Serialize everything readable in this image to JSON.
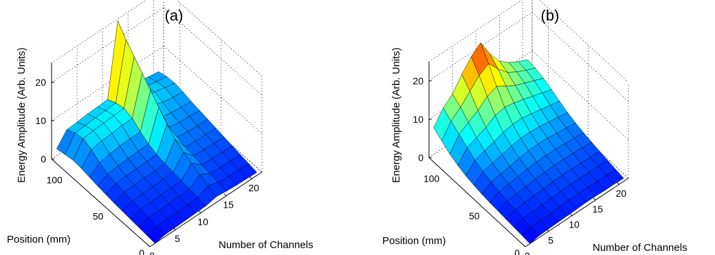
{
  "chart_data": [
    {
      "type": "surface3d",
      "title": "(a)",
      "xlabel": "Number of Channels",
      "ylabel": "Position (mm)",
      "zlabel": "Energy Amplitude (Arb. Units)",
      "xticks": [
        "0",
        "5",
        "10",
        "15",
        "20"
      ],
      "yticks": [
        "0",
        "50",
        "100"
      ],
      "zticks": [
        "0",
        "10",
        "20"
      ],
      "xlim": [
        0,
        22
      ],
      "ylim": [
        0,
        120
      ],
      "zlim": [
        0,
        25
      ],
      "grid": true,
      "colormap": "jet",
      "channels": [
        1,
        3,
        5,
        7,
        9,
        11,
        13,
        15,
        17,
        19,
        21
      ],
      "positions": [
        0,
        10,
        20,
        30,
        40,
        50,
        60,
        70,
        80,
        90,
        100,
        110,
        120
      ],
      "z": [
        [
          0.0,
          0.2,
          0.4,
          0.6,
          0.8,
          1.0,
          1.3,
          1.6,
          2.0,
          2.4,
          2.6,
          2.2,
          1.8
        ],
        [
          0.5,
          0.8,
          1.1,
          1.4,
          1.7,
          2.0,
          2.4,
          3.0,
          4.0,
          5.5,
          6.5,
          6.0,
          5.0
        ],
        [
          0.6,
          0.9,
          1.2,
          1.5,
          1.8,
          2.1,
          2.6,
          3.3,
          4.5,
          6.0,
          6.8,
          6.2,
          5.2
        ],
        [
          0.7,
          1.0,
          1.3,
          1.6,
          1.9,
          2.2,
          2.7,
          3.5,
          4.8,
          6.2,
          7.0,
          6.5,
          5.5
        ],
        [
          0.8,
          1.1,
          1.4,
          1.7,
          2.0,
          2.3,
          2.8,
          3.6,
          5.0,
          6.5,
          7.2,
          6.6,
          5.6
        ],
        [
          0.9,
          1.2,
          1.5,
          1.8,
          2.1,
          2.4,
          2.9,
          3.7,
          5.0,
          6.6,
          7.3,
          6.8,
          5.8
        ],
        [
          1.5,
          2.5,
          3.5,
          4.5,
          5.5,
          7.0,
          9.0,
          11.5,
          14.0,
          16.5,
          19.0,
          21.5,
          24.5
        ],
        [
          1.2,
          1.6,
          2.0,
          2.4,
          2.8,
          3.2,
          3.8,
          4.5,
          5.2,
          6.5,
          7.2,
          6.8,
          6.0
        ],
        [
          1.0,
          1.4,
          1.8,
          2.2,
          2.6,
          3.0,
          3.5,
          4.0,
          4.6,
          5.5,
          6.2,
          5.8,
          5.0
        ],
        [
          0.9,
          1.3,
          1.7,
          2.1,
          2.5,
          2.9,
          3.3,
          3.8,
          4.3,
          5.0,
          5.6,
          5.2,
          4.6
        ],
        [
          0.8,
          1.2,
          1.6,
          2.0,
          2.4,
          2.8,
          3.2,
          3.6,
          4.0,
          4.6,
          5.0,
          4.8,
          4.2
        ]
      ]
    },
    {
      "type": "surface3d",
      "title": "(b)",
      "xlabel": "Number of Channels",
      "ylabel": "Position (mm)",
      "zlabel": "Energy Amplitude (Arb. Units)",
      "xticks": [
        "0",
        "5",
        "10",
        "15",
        "20"
      ],
      "yticks": [
        "0",
        "50",
        "100"
      ],
      "zticks": [
        "0",
        "10",
        "20"
      ],
      "xlim": [
        0,
        22
      ],
      "ylim": [
        0,
        120
      ],
      "zlim": [
        0,
        25
      ],
      "grid": true,
      "colormap": "jet",
      "channels": [
        1,
        3,
        5,
        7,
        9,
        11,
        13,
        15,
        17,
        19,
        21
      ],
      "positions": [
        0,
        10,
        20,
        30,
        40,
        50,
        60,
        70,
        80,
        90,
        100,
        110,
        120
      ],
      "z": [
        [
          0.0,
          0.2,
          0.4,
          0.6,
          0.8,
          1.0,
          1.3,
          1.7,
          2.2,
          3.0,
          4.0,
          5.5,
          7.0
        ],
        [
          0.5,
          0.8,
          1.1,
          1.4,
          1.8,
          2.2,
          2.8,
          3.6,
          4.6,
          6.0,
          7.5,
          9.0,
          10.5
        ],
        [
          0.6,
          0.9,
          1.2,
          1.6,
          2.0,
          2.6,
          3.3,
          4.2,
          5.5,
          7.0,
          9.0,
          11.0,
          12.5
        ],
        [
          0.7,
          1.0,
          1.4,
          1.8,
          2.3,
          2.9,
          3.7,
          4.8,
          6.2,
          8.0,
          10.5,
          13.5,
          16.0
        ],
        [
          0.8,
          1.1,
          1.5,
          2.0,
          2.6,
          3.3,
          4.2,
          5.4,
          7.0,
          9.5,
          12.5,
          16.0,
          19.0
        ],
        [
          0.9,
          1.3,
          1.7,
          2.2,
          2.8,
          3.5,
          4.5,
          5.8,
          7.5,
          10.0,
          13.5,
          17.5,
          21.0
        ],
        [
          1.0,
          1.4,
          1.8,
          2.3,
          2.9,
          3.6,
          4.6,
          5.8,
          7.5,
          9.5,
          12.0,
          14.5,
          16.5
        ],
        [
          1.0,
          1.4,
          1.8,
          2.3,
          2.9,
          3.6,
          4.5,
          5.6,
          7.0,
          8.8,
          10.5,
          12.0,
          13.0
        ],
        [
          0.9,
          1.3,
          1.7,
          2.2,
          2.8,
          3.4,
          4.2,
          5.2,
          6.5,
          8.0,
          9.5,
          10.5,
          11.0
        ],
        [
          0.9,
          1.3,
          1.7,
          2.1,
          2.6,
          3.2,
          3.9,
          4.8,
          6.0,
          7.3,
          8.5,
          9.3,
          9.6
        ],
        [
          0.8,
          1.2,
          1.6,
          2.0,
          2.5,
          3.0,
          3.6,
          4.4,
          5.4,
          6.5,
          7.5,
          8.2,
          8.5
        ]
      ]
    }
  ]
}
